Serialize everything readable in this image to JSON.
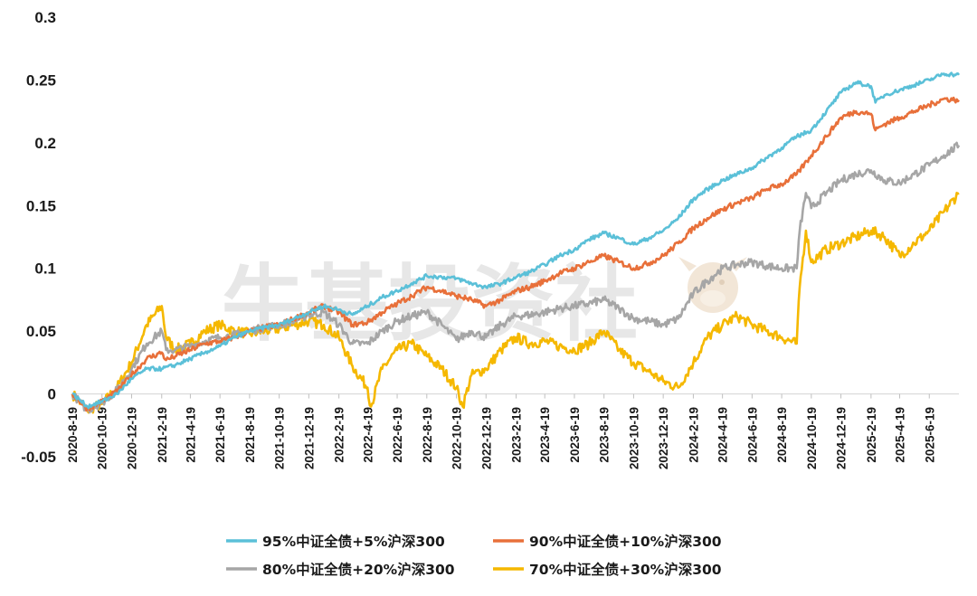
{
  "chart_data": {
    "type": "line",
    "ylim": [
      -0.05,
      0.3
    ],
    "yticks": [
      "0.3",
      "0.25",
      "0.2",
      "0.15",
      "0.1",
      "0.05",
      "0",
      "-0.05"
    ],
    "ytick_values": [
      0.3,
      0.25,
      0.2,
      0.15,
      0.1,
      0.05,
      0,
      -0.05
    ],
    "xticks": [
      "2020-8-19",
      "2020-10-19",
      "2020-12-19",
      "2021-2-19",
      "2021-4-19",
      "2021-6-19",
      "2021-8-19",
      "2021-10-19",
      "2021-12-19",
      "2022-2-19",
      "2022-4-19",
      "2022-6-19",
      "2022-8-19",
      "2022-10-19",
      "2022-12-19",
      "2023-2-19",
      "2023-4-19",
      "2023-6-19",
      "2023-8-19",
      "2023-10-19",
      "2023-12-19",
      "2024-2-19",
      "2024-4-19",
      "2024-6-19",
      "2024-8-19",
      "2024-10-19",
      "2024-12-19",
      "2025-2-19",
      "2025-4-19",
      "2025-6-19"
    ],
    "x_range": [
      "2020-8-19",
      "2025-8-19"
    ],
    "grid": false,
    "legend_position": "bottom",
    "series": [
      {
        "name": "95%中证全债+5%沪深300",
        "color": "#5bc0d8",
        "points": [
          [
            "2020-8-19",
            0.0
          ],
          [
            "2020-9-19",
            -0.01
          ],
          [
            "2020-10-19",
            -0.006
          ],
          [
            "2020-11-19",
            0.0
          ],
          [
            "2020-12-19",
            0.012
          ],
          [
            "2021-1-19",
            0.02
          ],
          [
            "2021-2-19",
            0.02
          ],
          [
            "2021-3-19",
            0.023
          ],
          [
            "2021-4-19",
            0.028
          ],
          [
            "2021-5-19",
            0.033
          ],
          [
            "2021-6-19",
            0.038
          ],
          [
            "2021-7-19",
            0.045
          ],
          [
            "2021-8-19",
            0.05
          ],
          [
            "2021-9-19",
            0.053
          ],
          [
            "2021-10-19",
            0.055
          ],
          [
            "2021-11-19",
            0.06
          ],
          [
            "2021-12-19",
            0.065
          ],
          [
            "2022-1-19",
            0.07
          ],
          [
            "2022-2-19",
            0.067
          ],
          [
            "2022-3-19",
            0.063
          ],
          [
            "2022-4-19",
            0.07
          ],
          [
            "2022-5-19",
            0.077
          ],
          [
            "2022-6-19",
            0.082
          ],
          [
            "2022-7-19",
            0.088
          ],
          [
            "2022-8-19",
            0.094
          ],
          [
            "2022-9-19",
            0.093
          ],
          [
            "2022-10-19",
            0.092
          ],
          [
            "2022-11-19",
            0.088
          ],
          [
            "2022-12-19",
            0.085
          ],
          [
            "2023-1-19",
            0.088
          ],
          [
            "2023-2-19",
            0.093
          ],
          [
            "2023-3-19",
            0.097
          ],
          [
            "2023-4-19",
            0.103
          ],
          [
            "2023-5-19",
            0.11
          ],
          [
            "2023-6-19",
            0.115
          ],
          [
            "2023-7-19",
            0.123
          ],
          [
            "2023-8-19",
            0.128
          ],
          [
            "2023-9-19",
            0.124
          ],
          [
            "2023-10-19",
            0.119
          ],
          [
            "2023-11-19",
            0.124
          ],
          [
            "2023-12-19",
            0.13
          ],
          [
            "2024-1-19",
            0.14
          ],
          [
            "2024-2-19",
            0.155
          ],
          [
            "2024-3-19",
            0.163
          ],
          [
            "2024-4-19",
            0.17
          ],
          [
            "2024-5-19",
            0.175
          ],
          [
            "2024-6-19",
            0.18
          ],
          [
            "2024-7-19",
            0.188
          ],
          [
            "2024-8-19",
            0.196
          ],
          [
            "2024-9-19",
            0.205
          ],
          [
            "2024-10-19",
            0.21
          ],
          [
            "2024-11-19",
            0.225
          ],
          [
            "2024-12-19",
            0.24
          ],
          [
            "2025-1-19",
            0.248
          ],
          [
            "2025-2-19",
            0.245
          ],
          [
            "2025-2-28",
            0.232
          ],
          [
            "2025-3-19",
            0.238
          ],
          [
            "2025-4-19",
            0.242
          ],
          [
            "2025-5-19",
            0.246
          ],
          [
            "2025-6-19",
            0.25
          ],
          [
            "2025-7-19",
            0.255
          ],
          [
            "2025-8-19",
            0.254
          ]
        ]
      },
      {
        "name": "90%中证全债+10%沪深300",
        "color": "#e8703a",
        "points": [
          [
            "2020-8-19",
            0.0
          ],
          [
            "2020-9-19",
            -0.012
          ],
          [
            "2020-10-19",
            -0.006
          ],
          [
            "2020-11-19",
            0.002
          ],
          [
            "2020-12-19",
            0.015
          ],
          [
            "2021-1-19",
            0.028
          ],
          [
            "2021-2-19",
            0.033
          ],
          [
            "2021-2-28",
            0.027
          ],
          [
            "2021-3-19",
            0.03
          ],
          [
            "2021-4-19",
            0.035
          ],
          [
            "2021-5-19",
            0.04
          ],
          [
            "2021-6-19",
            0.042
          ],
          [
            "2021-7-19",
            0.045
          ],
          [
            "2021-8-19",
            0.05
          ],
          [
            "2021-9-19",
            0.053
          ],
          [
            "2021-10-19",
            0.055
          ],
          [
            "2021-11-19",
            0.06
          ],
          [
            "2021-12-19",
            0.065
          ],
          [
            "2022-1-19",
            0.07
          ],
          [
            "2022-2-19",
            0.065
          ],
          [
            "2022-3-19",
            0.055
          ],
          [
            "2022-4-19",
            0.057
          ],
          [
            "2022-5-19",
            0.065
          ],
          [
            "2022-6-19",
            0.072
          ],
          [
            "2022-7-19",
            0.078
          ],
          [
            "2022-8-19",
            0.085
          ],
          [
            "2022-9-19",
            0.082
          ],
          [
            "2022-10-19",
            0.078
          ],
          [
            "2022-11-19",
            0.075
          ],
          [
            "2022-12-19",
            0.07
          ],
          [
            "2023-1-19",
            0.075
          ],
          [
            "2023-2-19",
            0.082
          ],
          [
            "2023-3-19",
            0.085
          ],
          [
            "2023-4-19",
            0.09
          ],
          [
            "2023-5-19",
            0.096
          ],
          [
            "2023-6-19",
            0.1
          ],
          [
            "2023-7-19",
            0.105
          ],
          [
            "2023-8-19",
            0.11
          ],
          [
            "2023-9-19",
            0.105
          ],
          [
            "2023-10-19",
            0.1
          ],
          [
            "2023-11-19",
            0.104
          ],
          [
            "2023-12-19",
            0.11
          ],
          [
            "2024-1-19",
            0.12
          ],
          [
            "2024-2-19",
            0.132
          ],
          [
            "2024-3-19",
            0.14
          ],
          [
            "2024-4-19",
            0.147
          ],
          [
            "2024-5-19",
            0.152
          ],
          [
            "2024-6-19",
            0.156
          ],
          [
            "2024-7-19",
            0.163
          ],
          [
            "2024-8-19",
            0.167
          ],
          [
            "2024-9-19",
            0.175
          ],
          [
            "2024-10-19",
            0.19
          ],
          [
            "2024-11-19",
            0.205
          ],
          [
            "2024-12-19",
            0.22
          ],
          [
            "2025-1-19",
            0.225
          ],
          [
            "2025-2-19",
            0.223
          ],
          [
            "2025-2-28",
            0.21
          ],
          [
            "2025-3-19",
            0.215
          ],
          [
            "2025-4-19",
            0.22
          ],
          [
            "2025-5-19",
            0.225
          ],
          [
            "2025-6-19",
            0.23
          ],
          [
            "2025-7-19",
            0.235
          ],
          [
            "2025-8-19",
            0.234
          ]
        ]
      },
      {
        "name": "80%中证全债+20%沪深300",
        "color": "#a6a6a6",
        "points": [
          [
            "2020-8-19",
            0.0
          ],
          [
            "2020-9-19",
            -0.013
          ],
          [
            "2020-10-19",
            -0.007
          ],
          [
            "2020-11-19",
            0.003
          ],
          [
            "2020-12-19",
            0.02
          ],
          [
            "2021-1-19",
            0.04
          ],
          [
            "2021-2-19",
            0.05
          ],
          [
            "2021-2-28",
            0.035
          ],
          [
            "2021-3-19",
            0.035
          ],
          [
            "2021-4-19",
            0.038
          ],
          [
            "2021-5-19",
            0.042
          ],
          [
            "2021-6-19",
            0.045
          ],
          [
            "2021-7-19",
            0.047
          ],
          [
            "2021-8-19",
            0.05
          ],
          [
            "2021-9-19",
            0.053
          ],
          [
            "2021-10-19",
            0.055
          ],
          [
            "2021-11-19",
            0.058
          ],
          [
            "2021-12-19",
            0.063
          ],
          [
            "2022-1-19",
            0.065
          ],
          [
            "2022-2-19",
            0.055
          ],
          [
            "2022-3-19",
            0.04
          ],
          [
            "2022-4-19",
            0.04
          ],
          [
            "2022-5-19",
            0.05
          ],
          [
            "2022-6-19",
            0.058
          ],
          [
            "2022-7-19",
            0.062
          ],
          [
            "2022-8-19",
            0.065
          ],
          [
            "2022-9-19",
            0.055
          ],
          [
            "2022-10-19",
            0.043
          ],
          [
            "2022-11-19",
            0.05
          ],
          [
            "2022-12-19",
            0.045
          ],
          [
            "2023-1-19",
            0.055
          ],
          [
            "2023-2-19",
            0.062
          ],
          [
            "2023-3-19",
            0.063
          ],
          [
            "2023-4-19",
            0.065
          ],
          [
            "2023-5-19",
            0.068
          ],
          [
            "2023-6-19",
            0.07
          ],
          [
            "2023-7-19",
            0.072
          ],
          [
            "2023-8-19",
            0.075
          ],
          [
            "2023-9-19",
            0.068
          ],
          [
            "2023-10-19",
            0.06
          ],
          [
            "2023-11-19",
            0.058
          ],
          [
            "2023-12-19",
            0.055
          ],
          [
            "2024-1-19",
            0.06
          ],
          [
            "2024-2-19",
            0.08
          ],
          [
            "2024-3-19",
            0.09
          ],
          [
            "2024-4-19",
            0.1
          ],
          [
            "2024-5-19",
            0.103
          ],
          [
            "2024-6-19",
            0.105
          ],
          [
            "2024-7-19",
            0.102
          ],
          [
            "2024-8-19",
            0.1
          ],
          [
            "2024-9-19",
            0.1
          ],
          [
            "2024-9-25",
            0.13
          ],
          [
            "2024-10-8",
            0.16
          ],
          [
            "2024-10-19",
            0.148
          ],
          [
            "2024-11-19",
            0.16
          ],
          [
            "2024-12-19",
            0.17
          ],
          [
            "2025-1-19",
            0.175
          ],
          [
            "2025-2-19",
            0.178
          ],
          [
            "2025-3-19",
            0.17
          ],
          [
            "2025-4-19",
            0.168
          ],
          [
            "2025-5-19",
            0.175
          ],
          [
            "2025-6-19",
            0.182
          ],
          [
            "2025-7-19",
            0.19
          ],
          [
            "2025-8-19",
            0.198
          ]
        ]
      },
      {
        "name": "70%中证全债+30%沪深300",
        "color": "#f5b800",
        "points": [
          [
            "2020-8-19",
            0.0
          ],
          [
            "2020-9-19",
            -0.013
          ],
          [
            "2020-10-19",
            -0.008
          ],
          [
            "2020-11-19",
            0.005
          ],
          [
            "2020-12-19",
            0.025
          ],
          [
            "2021-1-19",
            0.055
          ],
          [
            "2021-2-19",
            0.07
          ],
          [
            "2021-2-28",
            0.045
          ],
          [
            "2021-3-19",
            0.035
          ],
          [
            "2021-4-19",
            0.04
          ],
          [
            "2021-5-19",
            0.05
          ],
          [
            "2021-6-19",
            0.055
          ],
          [
            "2021-7-19",
            0.05
          ],
          [
            "2021-8-19",
            0.048
          ],
          [
            "2021-9-19",
            0.05
          ],
          [
            "2021-10-19",
            0.052
          ],
          [
            "2021-11-19",
            0.055
          ],
          [
            "2021-12-19",
            0.058
          ],
          [
            "2022-1-19",
            0.055
          ],
          [
            "2022-2-19",
            0.045
          ],
          [
            "2022-3-19",
            0.022
          ],
          [
            "2022-4-19",
            0.005
          ],
          [
            "2022-4-26",
            -0.01
          ],
          [
            "2022-5-19",
            0.02
          ],
          [
            "2022-6-19",
            0.035
          ],
          [
            "2022-7-19",
            0.04
          ],
          [
            "2022-8-19",
            0.03
          ],
          [
            "2022-9-19",
            0.02
          ],
          [
            "2022-10-19",
            0.005
          ],
          [
            "2022-11-1",
            -0.01
          ],
          [
            "2022-11-19",
            0.015
          ],
          [
            "2022-12-19",
            0.02
          ],
          [
            "2023-1-19",
            0.035
          ],
          [
            "2023-2-19",
            0.045
          ],
          [
            "2023-3-19",
            0.04
          ],
          [
            "2023-4-19",
            0.042
          ],
          [
            "2023-5-19",
            0.038
          ],
          [
            "2023-6-19",
            0.035
          ],
          [
            "2023-7-19",
            0.04
          ],
          [
            "2023-8-19",
            0.05
          ],
          [
            "2023-9-19",
            0.035
          ],
          [
            "2023-10-19",
            0.025
          ],
          [
            "2023-11-19",
            0.018
          ],
          [
            "2023-12-19",
            0.01
          ],
          [
            "2024-1-19",
            0.005
          ],
          [
            "2024-2-19",
            0.025
          ],
          [
            "2024-3-19",
            0.045
          ],
          [
            "2024-4-19",
            0.055
          ],
          [
            "2024-5-19",
            0.062
          ],
          [
            "2024-6-19",
            0.055
          ],
          [
            "2024-7-19",
            0.05
          ],
          [
            "2024-8-19",
            0.045
          ],
          [
            "2024-9-19",
            0.04
          ],
          [
            "2024-9-25",
            0.085
          ],
          [
            "2024-10-8",
            0.13
          ],
          [
            "2024-10-19",
            0.105
          ],
          [
            "2024-11-19",
            0.115
          ],
          [
            "2024-12-19",
            0.12
          ],
          [
            "2025-1-19",
            0.125
          ],
          [
            "2025-2-19",
            0.13
          ],
          [
            "2025-3-19",
            0.125
          ],
          [
            "2025-4-19",
            0.11
          ],
          [
            "2025-5-19",
            0.12
          ],
          [
            "2025-6-19",
            0.13
          ],
          [
            "2025-7-19",
            0.145
          ],
          [
            "2025-8-19",
            0.16
          ]
        ]
      }
    ]
  },
  "watermark": {
    "text": "牛基投资社"
  }
}
